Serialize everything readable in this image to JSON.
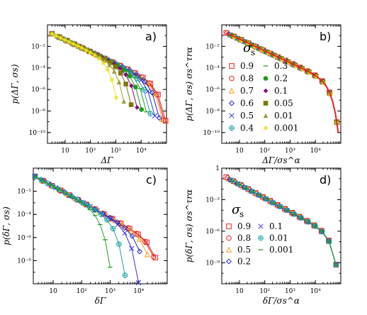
{
  "chart_data": [
    {
      "type": "scatter",
      "panel_label": "a)",
      "ylabel": "p(Δ_Γ, σ_s)",
      "xlabel": "Δ_Γ",
      "xscale": "log",
      "yscale": "log",
      "xlim": [
        2,
        100000
      ],
      "ylim": [
        1e-11,
        1
      ],
      "xticks": [
        "10",
        "10²",
        "10³",
        "10⁴"
      ],
      "yticks": [
        "10⁻¹⁰",
        "10⁻⁸",
        "10⁻⁶",
        "10⁻⁴",
        "10⁻²"
      ],
      "series": [
        {
          "sigma": "0.9",
          "cutoff": 80000,
          "color": "#e8201b",
          "marker": "square-open"
        },
        {
          "sigma": "0.8",
          "cutoff": 70000,
          "color": "#e8201b",
          "marker": "circle-open"
        },
        {
          "sigma": "0.7",
          "cutoff": 60000,
          "color": "#f0a020",
          "marker": "triangle-open"
        },
        {
          "sigma": "0.6",
          "cutoff": 45000,
          "color": "#2222cc",
          "marker": "diamond-open"
        },
        {
          "sigma": "0.5",
          "cutoff": 30000,
          "color": "#3333dd",
          "marker": "x"
        },
        {
          "sigma": "0.4",
          "cutoff": 20000,
          "color": "#1ea3a3",
          "marker": "circle-plus"
        },
        {
          "sigma": "0.3",
          "cutoff": 14000,
          "color": "#20a020",
          "marker": "dash"
        },
        {
          "sigma": "0.2",
          "cutoff": 9000,
          "color": "#1a9e1a",
          "marker": "circle"
        },
        {
          "sigma": "0.1",
          "cutoff": 6000,
          "color": "#8a0080",
          "marker": "diamond"
        },
        {
          "sigma": "0.05",
          "cutoff": 3500,
          "color": "#7a7a00",
          "marker": "square"
        },
        {
          "sigma": "0.01",
          "cutoff": 1800,
          "color": "#a09a40",
          "marker": "triangle"
        },
        {
          "sigma": "0.001",
          "cutoff": 900,
          "color": "#f0e020",
          "marker": "star"
        }
      ]
    },
    {
      "type": "scatter",
      "panel_label": "b)",
      "ylabel": "p(Δ_Γ, σ_s) σ_s^(τ_r α)",
      "xlabel": "Δ_Γ / σ_s^α",
      "xscale": "log",
      "yscale": "log",
      "xlim": [
        2,
        100000
      ],
      "ylim": [
        1e-11,
        1
      ],
      "xticks": [
        "10",
        "10²",
        "10³",
        "10⁴"
      ],
      "yticks": [
        "10⁻¹⁰",
        "10⁻⁸",
        "10⁻⁶",
        "10⁻⁴",
        "10⁻²"
      ],
      "legend": {
        "title": "σ_s",
        "entries_col1": [
          "0.9",
          "0.8",
          "0.7",
          "0.6",
          "0.5",
          "0.4"
        ],
        "entries_col2": [
          "0.3",
          "0.2",
          "0.1",
          "0.05",
          "0.01",
          "0.001"
        ]
      }
    },
    {
      "type": "scatter",
      "panel_label": "c)",
      "ylabel": "p(δ_Γ, σ_s)",
      "xlabel": "δ_Γ",
      "xscale": "log",
      "yscale": "log",
      "xlim": [
        2,
        100000
      ],
      "ylim": [
        1e-10,
        1
      ],
      "xticks": [
        "10",
        "10²",
        "10³",
        "10⁴"
      ],
      "yticks": [
        "10⁻⁸",
        "10⁻⁶",
        "10⁻⁴",
        "10⁻²"
      ],
      "series": [
        {
          "sigma": "0.9",
          "cutoff": 70000,
          "color": "#e8201b",
          "marker": "square-open"
        },
        {
          "sigma": "0.8",
          "cutoff": 60000,
          "color": "#e8201b",
          "marker": "circle-open"
        },
        {
          "sigma": "0.5",
          "cutoff": 35000,
          "color": "#f0a020",
          "marker": "triangle-open"
        },
        {
          "sigma": "0.2",
          "cutoff": 18000,
          "color": "#2222cc",
          "marker": "diamond-open"
        },
        {
          "sigma": "0.1",
          "cutoff": 9000,
          "color": "#3333dd",
          "marker": "x"
        },
        {
          "sigma": "0.01",
          "cutoff": 3000,
          "color": "#1ea3a3",
          "marker": "circle-plus"
        },
        {
          "sigma": "0.001",
          "cutoff": 900,
          "color": "#20a020",
          "marker": "dash"
        }
      ]
    },
    {
      "type": "scatter",
      "panel_label": "d)",
      "ylabel": "p(δ_Γ, σ_s) σ_s^(τ_r α)",
      "xlabel": "δ_Γ / σ_s^α",
      "xscale": "log",
      "yscale": "log",
      "xlim": [
        2,
        100000
      ],
      "ylim": [
        1e-11,
        1
      ],
      "xticks": [
        "10",
        "10²",
        "10³",
        "10⁴"
      ],
      "yticks": [
        "10⁻⁹",
        "10⁻⁶",
        "10⁻³",
        "1"
      ],
      "legend": {
        "title": "σ_s",
        "entries_col1": [
          "0.9",
          "0.8",
          "0.5",
          "0.2"
        ],
        "entries_col2": [
          "0.1",
          "0.01",
          "0.001"
        ]
      }
    }
  ]
}
